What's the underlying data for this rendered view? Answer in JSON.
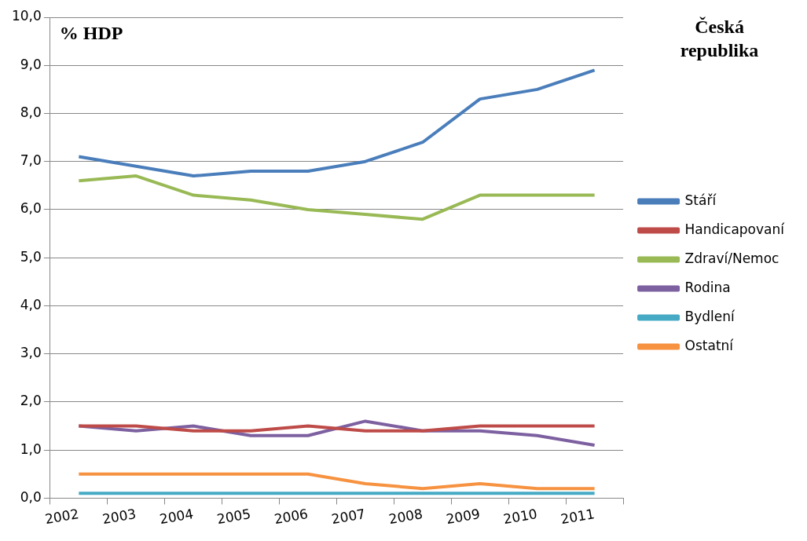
{
  "chart_data": {
    "type": "line",
    "title": "Česká republika",
    "ylabel": "% HDP",
    "categories": [
      "2002",
      "2003",
      "2004",
      "2005",
      "2006",
      "2007",
      "2008",
      "2009",
      "2010",
      "2011"
    ],
    "series": [
      {
        "name": "Stáří",
        "color": "#4a7ebb",
        "values": [
          7.1,
          6.9,
          6.7,
          6.8,
          6.8,
          7.0,
          7.4,
          8.3,
          8.5,
          8.9
        ]
      },
      {
        "name": "Handicapovaní",
        "color": "#be4b48",
        "values": [
          1.5,
          1.5,
          1.4,
          1.4,
          1.5,
          1.4,
          1.4,
          1.5,
          1.5,
          1.5
        ]
      },
      {
        "name": "Zdraví/Nemoc",
        "color": "#98b954",
        "values": [
          6.6,
          6.7,
          6.3,
          6.2,
          6.0,
          5.9,
          5.8,
          6.3,
          6.3,
          6.3
        ]
      },
      {
        "name": "Rodina",
        "color": "#7d60a0",
        "values": [
          1.5,
          1.4,
          1.5,
          1.3,
          1.3,
          1.6,
          1.4,
          1.4,
          1.3,
          1.1
        ]
      },
      {
        "name": "Bydlení",
        "color": "#46aac5",
        "values": [
          0.1,
          0.1,
          0.1,
          0.1,
          0.1,
          0.1,
          0.1,
          0.1,
          0.1,
          0.1
        ]
      },
      {
        "name": "Ostatní",
        "color": "#f69240",
        "values": [
          0.5,
          0.5,
          0.5,
          0.5,
          0.5,
          0.3,
          0.2,
          0.3,
          0.2,
          0.2
        ]
      }
    ],
    "ylim": [
      0,
      10
    ],
    "yticks": [
      {
        "value": 0,
        "label": "0,0"
      },
      {
        "value": 1,
        "label": "1,0"
      },
      {
        "value": 2,
        "label": "2,0"
      },
      {
        "value": 3,
        "label": "3,0"
      },
      {
        "value": 4,
        "label": "4,0"
      },
      {
        "value": 5,
        "label": "5,0"
      },
      {
        "value": 6,
        "label": "6,0"
      },
      {
        "value": 7,
        "label": "7,0"
      },
      {
        "value": 8,
        "label": "8,0"
      },
      {
        "value": 9,
        "label": "9,0"
      },
      {
        "value": 10,
        "label": "10,0"
      }
    ],
    "grid": "y",
    "legend": "right",
    "marker": "none",
    "line_style": "solid"
  }
}
